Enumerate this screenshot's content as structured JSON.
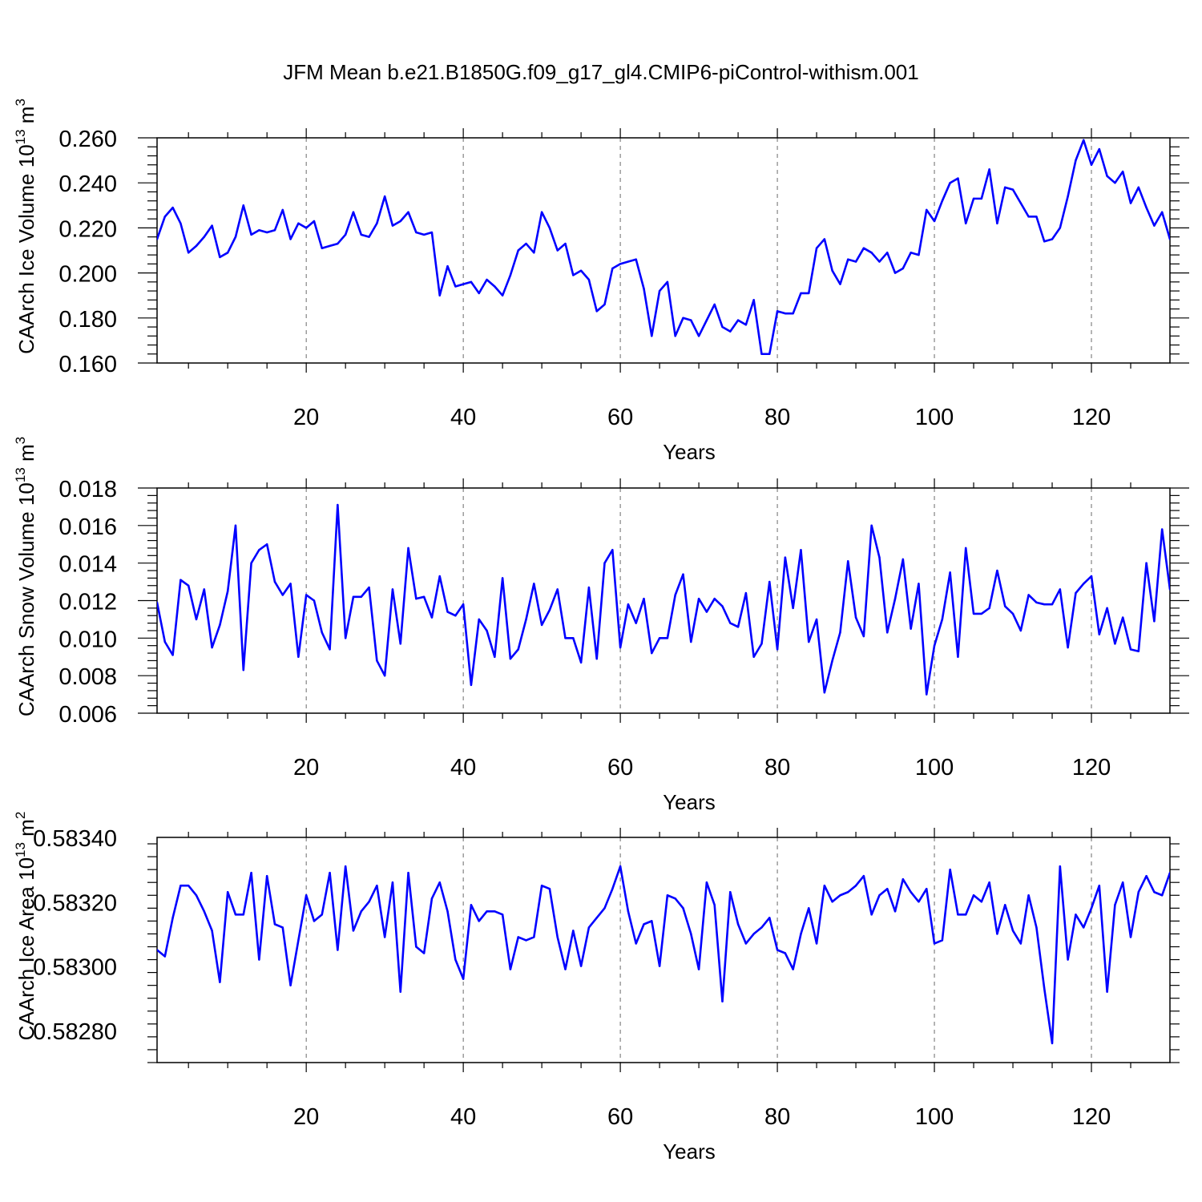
{
  "title": "JFM Mean b.e21.B1850G.f09_g17_gl4.CMIP6-piControl-withism.001",
  "colors": {
    "line": "#0000ff",
    "axis": "#000000",
    "grid": "#6b6b6b"
  },
  "chart_data": [
    {
      "type": "line",
      "ylabel": {
        "main": "CAArch Ice Volume 10",
        "exp": "13",
        "unit": " m",
        "unit_exp": "3"
      },
      "xlabel": "Years",
      "xlim": [
        1,
        130
      ],
      "ylim": [
        0.16,
        0.26
      ],
      "yticks": [
        "0.160",
        "0.180",
        "0.200",
        "0.220",
        "0.240",
        "0.260"
      ],
      "xticks": [
        "20",
        "40",
        "60",
        "80",
        "100",
        "120"
      ],
      "grid": "vertical dashed at major x ticks",
      "x_start": 1,
      "values": [
        0.215,
        0.225,
        0.229,
        0.222,
        0.209,
        0.212,
        0.216,
        0.221,
        0.207,
        0.209,
        0.216,
        0.23,
        0.217,
        0.219,
        0.218,
        0.219,
        0.228,
        0.215,
        0.222,
        0.22,
        0.223,
        0.211,
        0.212,
        0.213,
        0.217,
        0.227,
        0.217,
        0.216,
        0.222,
        0.234,
        0.221,
        0.223,
        0.227,
        0.218,
        0.217,
        0.218,
        0.19,
        0.203,
        0.194,
        0.195,
        0.196,
        0.191,
        0.197,
        0.194,
        0.19,
        0.199,
        0.21,
        0.213,
        0.209,
        0.227,
        0.22,
        0.21,
        0.213,
        0.199,
        0.201,
        0.197,
        0.183,
        0.186,
        0.202,
        0.204,
        0.205,
        0.206,
        0.193,
        0.172,
        0.192,
        0.196,
        0.172,
        0.18,
        0.179,
        0.172,
        0.179,
        0.186,
        0.176,
        0.174,
        0.179,
        0.177,
        0.188,
        0.164,
        0.164,
        0.183,
        0.182,
        0.182,
        0.191,
        0.191,
        0.211,
        0.215,
        0.201,
        0.195,
        0.206,
        0.205,
        0.211,
        0.209,
        0.205,
        0.209,
        0.2,
        0.202,
        0.209,
        0.208,
        0.228,
        0.223,
        0.232,
        0.24,
        0.242,
        0.222,
        0.233,
        0.233,
        0.246,
        0.222,
        0.238,
        0.237,
        0.231,
        0.225,
        0.225,
        0.214,
        0.215,
        0.22,
        0.234,
        0.25,
        0.259,
        0.248,
        0.255,
        0.243,
        0.24,
        0.245,
        0.231,
        0.238,
        0.229,
        0.221,
        0.227,
        0.215
      ]
    },
    {
      "type": "line",
      "ylabel": {
        "main": "CAArch Snow Volume 10",
        "exp": "13",
        "unit": " m",
        "unit_exp": "3"
      },
      "xlabel": "Years",
      "xlim": [
        1,
        130
      ],
      "ylim": [
        0.006,
        0.018
      ],
      "yticks": [
        "0.006",
        "0.008",
        "0.010",
        "0.012",
        "0.014",
        "0.016",
        "0.018"
      ],
      "xticks": [
        "20",
        "40",
        "60",
        "80",
        "100",
        "120"
      ],
      "grid": "vertical dashed at major x ticks",
      "x_start": 1,
      "values": [
        0.0119,
        0.0098,
        0.0091,
        0.0131,
        0.0128,
        0.011,
        0.0126,
        0.0095,
        0.0107,
        0.0125,
        0.016,
        0.0083,
        0.014,
        0.0147,
        0.015,
        0.013,
        0.0123,
        0.0129,
        0.009,
        0.0123,
        0.012,
        0.0103,
        0.0094,
        0.0171,
        0.01,
        0.0122,
        0.0122,
        0.0127,
        0.0088,
        0.008,
        0.0126,
        0.0097,
        0.0148,
        0.0121,
        0.0122,
        0.0111,
        0.0133,
        0.0114,
        0.0112,
        0.0118,
        0.0075,
        0.011,
        0.0104,
        0.009,
        0.0132,
        0.0089,
        0.0094,
        0.011,
        0.0129,
        0.0107,
        0.0115,
        0.0126,
        0.01,
        0.01,
        0.0087,
        0.0127,
        0.0089,
        0.014,
        0.0147,
        0.0095,
        0.0118,
        0.0108,
        0.0121,
        0.0092,
        0.01,
        0.01,
        0.0123,
        0.0134,
        0.0098,
        0.0121,
        0.0114,
        0.0121,
        0.0117,
        0.0108,
        0.0106,
        0.0124,
        0.009,
        0.0097,
        0.013,
        0.0094,
        0.0143,
        0.0116,
        0.0147,
        0.0098,
        0.011,
        0.0071,
        0.0088,
        0.0103,
        0.0141,
        0.0111,
        0.0101,
        0.016,
        0.0143,
        0.0103,
        0.0121,
        0.0142,
        0.0105,
        0.0129,
        0.007,
        0.0096,
        0.011,
        0.0135,
        0.009,
        0.0148,
        0.0113,
        0.0113,
        0.0116,
        0.0136,
        0.0117,
        0.0113,
        0.0104,
        0.0123,
        0.0119,
        0.0118,
        0.0118,
        0.0126,
        0.0095,
        0.0124,
        0.0129,
        0.0133,
        0.0102,
        0.0116,
        0.0097,
        0.0111,
        0.0094,
        0.0093,
        0.014,
        0.0109,
        0.0158,
        0.0126
      ]
    },
    {
      "type": "line",
      "ylabel": {
        "main": "CAArch Ice Area 10",
        "exp": "13",
        "unit": " m",
        "unit_exp": "2"
      },
      "xlabel": "Years",
      "xlim": [
        1,
        130
      ],
      "ylim": [
        0.5827,
        0.5834
      ],
      "yticks": [
        "0.58280",
        "0.58300",
        "0.58320",
        "0.58340"
      ],
      "xticks": [
        "20",
        "40",
        "60",
        "80",
        "100",
        "120"
      ],
      "grid": "vertical dashed at major x ticks",
      "x_start": 1,
      "values": [
        0.58305,
        0.58303,
        0.58315,
        0.58325,
        0.58325,
        0.58322,
        0.58317,
        0.58311,
        0.58295,
        0.58323,
        0.58316,
        0.58316,
        0.58329,
        0.58302,
        0.58328,
        0.58313,
        0.58312,
        0.58294,
        0.58308,
        0.58322,
        0.58314,
        0.58316,
        0.58329,
        0.58305,
        0.58331,
        0.58311,
        0.58317,
        0.5832,
        0.58325,
        0.58309,
        0.58326,
        0.58292,
        0.58329,
        0.58306,
        0.58304,
        0.58321,
        0.58326,
        0.58317,
        0.58302,
        0.58296,
        0.58319,
        0.58314,
        0.58317,
        0.58317,
        0.58316,
        0.58299,
        0.58309,
        0.58308,
        0.58309,
        0.58325,
        0.58324,
        0.58309,
        0.58299,
        0.58311,
        0.583,
        0.58312,
        0.58315,
        0.58318,
        0.58324,
        0.58331,
        0.58317,
        0.58307,
        0.58313,
        0.58314,
        0.583,
        0.58322,
        0.58321,
        0.58318,
        0.5831,
        0.58299,
        0.58326,
        0.58319,
        0.58289,
        0.58323,
        0.58313,
        0.58307,
        0.5831,
        0.58312,
        0.58315,
        0.58305,
        0.58304,
        0.58299,
        0.5831,
        0.58318,
        0.58307,
        0.58325,
        0.5832,
        0.58322,
        0.58323,
        0.58325,
        0.58328,
        0.58316,
        0.58322,
        0.58324,
        0.58317,
        0.58327,
        0.58323,
        0.5832,
        0.58324,
        0.58307,
        0.58308,
        0.5833,
        0.58316,
        0.58316,
        0.58322,
        0.5832,
        0.58326,
        0.5831,
        0.58319,
        0.58311,
        0.58307,
        0.58322,
        0.58312,
        0.58293,
        0.58276,
        0.58331,
        0.58302,
        0.58316,
        0.58312,
        0.58318,
        0.58325,
        0.58292,
        0.58319,
        0.58326,
        0.58309,
        0.58323,
        0.58328,
        0.58323,
        0.58322,
        0.58329
      ]
    }
  ]
}
